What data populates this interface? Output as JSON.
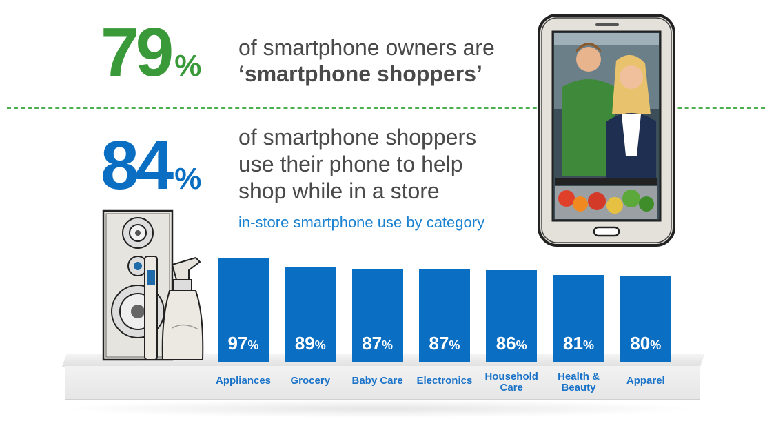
{
  "headline1": {
    "number": "79",
    "percent_sign": "%",
    "line1": "of smartphone owners are",
    "line2": "‘smartphone shoppers’"
  },
  "headline2": {
    "number": "84",
    "percent_sign": "%",
    "line1": "of smartphone shoppers",
    "line2": "use their phone to help",
    "line3": "shop while in a store"
  },
  "subtitle": "in-store smartphone use by category",
  "colors": {
    "green": "#3a9a3a",
    "blue": "#0a6fc2",
    "label_blue": "#1a73c8",
    "divider": "#4caf50"
  },
  "illustrations": [
    "appliance-speaker-icon",
    "cleaning-spray-bottle-icon",
    "smartphone-photo-shoppers"
  ],
  "chart_data": {
    "type": "bar",
    "title": "in-store smartphone use by category",
    "categories": [
      "Appliances",
      "Grocery",
      "Baby Care",
      "Electronics",
      "Household Care",
      "Health & Beauty",
      "Apparel"
    ],
    "category_lines": [
      [
        "Appliances"
      ],
      [
        "Grocery"
      ],
      [
        "Baby Care"
      ],
      [
        "Electronics"
      ],
      [
        "Household",
        "Care"
      ],
      [
        "Health &",
        "Beauty"
      ],
      [
        "Apparel"
      ]
    ],
    "values": [
      97,
      89,
      87,
      87,
      86,
      81,
      80
    ],
    "value_suffix": "%",
    "ylim": [
      0,
      100
    ],
    "grid": false,
    "legend": "none"
  }
}
